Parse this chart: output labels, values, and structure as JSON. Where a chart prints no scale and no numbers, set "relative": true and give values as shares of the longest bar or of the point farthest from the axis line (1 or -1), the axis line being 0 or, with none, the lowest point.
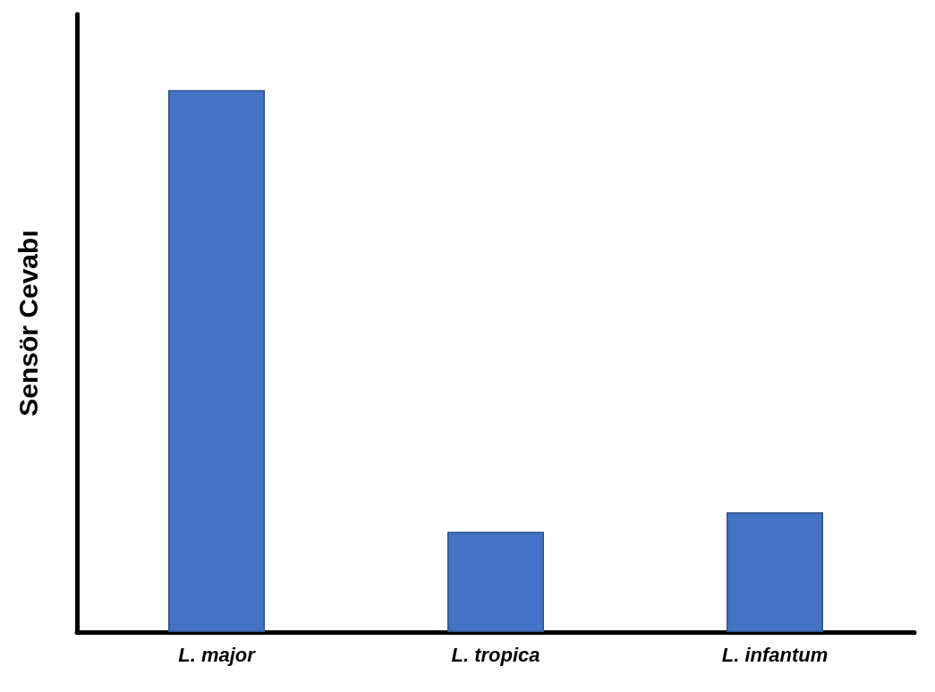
{
  "chart_data": {
    "type": "bar",
    "ylabel": "Sensör Cevabı",
    "categories": [
      "L. major",
      "L. tropica",
      "L. infantum"
    ],
    "values": [
      1,
      0.185,
      0.221
    ],
    "color": "#4472c4",
    "relative": true
  }
}
